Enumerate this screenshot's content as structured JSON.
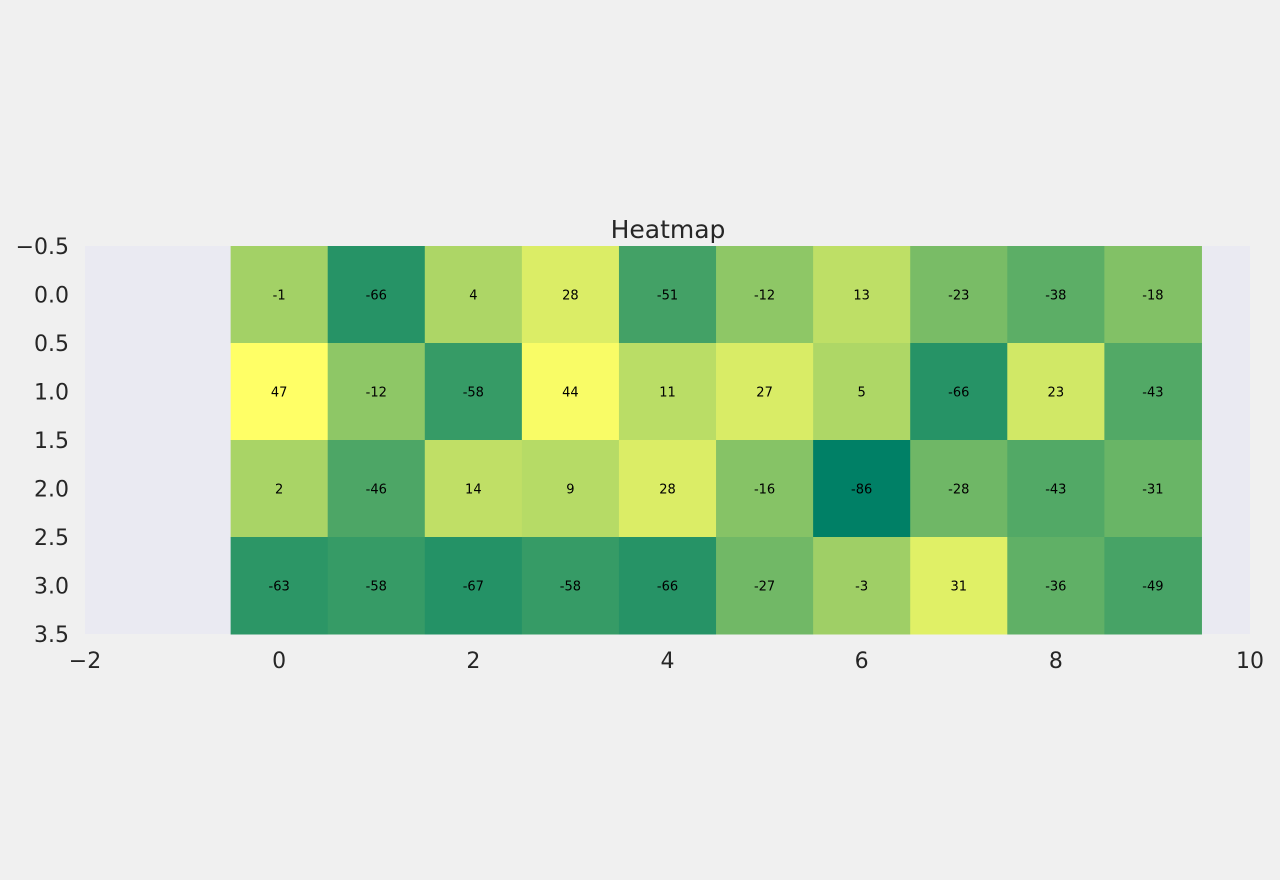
{
  "chart_data": {
    "type": "heatmap",
    "title": "Heatmap",
    "xlabel": "",
    "ylabel": "",
    "xlim": [
      -2,
      10
    ],
    "ylim": [
      3.5,
      -0.5
    ],
    "x_ticks": [
      -2,
      0,
      2,
      4,
      6,
      8,
      10
    ],
    "x_tick_labels": [
      "−2",
      "0",
      "2",
      "4",
      "6",
      "8",
      "10"
    ],
    "y_ticks": [
      -0.5,
      0.0,
      0.5,
      1.0,
      1.5,
      2.0,
      2.5,
      3.0,
      3.5
    ],
    "y_tick_labels": [
      "−0.5",
      "0.0",
      "0.5",
      "1.0",
      "1.5",
      "2.0",
      "2.5",
      "3.0",
      "3.5"
    ],
    "columns": [
      0,
      1,
      2,
      3,
      4,
      5,
      6,
      7,
      8,
      9
    ],
    "rows": [
      0,
      1,
      2,
      3
    ],
    "values": [
      [
        -1,
        -66,
        4,
        28,
        -51,
        -12,
        13,
        -23,
        -38,
        -18
      ],
      [
        47,
        -12,
        -58,
        44,
        11,
        27,
        5,
        -66,
        23,
        -43
      ],
      [
        2,
        -46,
        14,
        9,
        28,
        -16,
        -86,
        -28,
        -43,
        -31
      ],
      [
        -63,
        -58,
        -67,
        -58,
        -66,
        -27,
        -3,
        31,
        -36,
        -49
      ]
    ],
    "colormap": "summer",
    "color_range": [
      -86,
      47
    ],
    "colormap_low": "#008066",
    "colormap_high": "#ffff66",
    "grid": false,
    "legend": "none"
  },
  "colors": {
    "page_background": "#f0f0f0",
    "plot_background": "#eaeaf2",
    "text": "#262626"
  }
}
